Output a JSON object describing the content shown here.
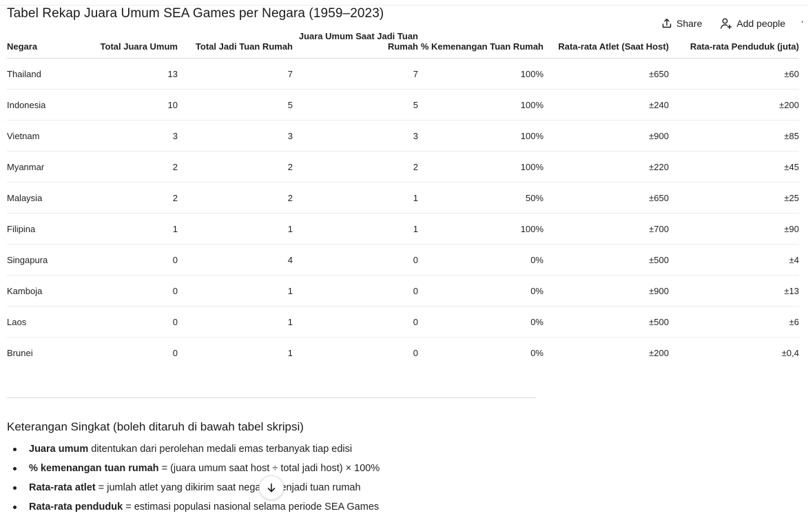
{
  "page": {
    "title": "Tabel Rekap Juara Umum SEA Games per Negara (1959–2023)"
  },
  "actions": {
    "share_label": "Share",
    "add_people_label": "Add people",
    "more_label": "·",
    "share_icon": "share-icon",
    "add_people_icon": "add-person-icon",
    "scroll_icon": "arrow-down-icon"
  },
  "table": {
    "headers": [
      "Negara",
      "Total Juara Umum",
      "Total Jadi Tuan Rumah",
      "Juara Umum Saat Jadi Tuan Rumah",
      "% Kemenangan Tuan Rumah",
      "Rata-rata Atlet (Saat Host)",
      "Rata-rata Penduduk (juta)"
    ],
    "rows": [
      [
        "Thailand",
        "13",
        "7",
        "7",
        "100%",
        "±650",
        "±60"
      ],
      [
        "Indonesia",
        "10",
        "5",
        "5",
        "100%",
        "±240",
        "±200"
      ],
      [
        "Vietnam",
        "3",
        "3",
        "3",
        "100%",
        "±900",
        "±85"
      ],
      [
        "Myanmar",
        "2",
        "2",
        "2",
        "100%",
        "±220",
        "±45"
      ],
      [
        "Malaysia",
        "2",
        "2",
        "1",
        "50%",
        "±650",
        "±25"
      ],
      [
        "Filipina",
        "1",
        "1",
        "1",
        "100%",
        "±700",
        "±90"
      ],
      [
        "Singapura",
        "0",
        "4",
        "0",
        "0%",
        "±500",
        "±4"
      ],
      [
        "Kamboja",
        "0",
        "1",
        "0",
        "0%",
        "±900",
        "±13"
      ],
      [
        "Laos",
        "0",
        "1",
        "0",
        "0%",
        "±500",
        "±6"
      ],
      [
        "Brunei",
        "0",
        "1",
        "0",
        "0%",
        "±200",
        "±0,4"
      ]
    ]
  },
  "notes": {
    "title": "Keterangan Singkat (boleh ditaruh di bawah tabel skripsi)",
    "items": [
      {
        "term": "Juara umum",
        "text": " ditentukan dari perolehan medali emas terbanyak tiap edisi"
      },
      {
        "term": "% kemenangan tuan rumah",
        "text": " = (juara umum saat host ÷ total jadi host) × 100%"
      },
      {
        "term": "Rata-rata atlet",
        "text": " = jumlah atlet yang dikirim saat negara menjadi tuan rumah"
      },
      {
        "term": "Rata-rata penduduk",
        "text": " = estimasi populasi nasional selama periode SEA Games"
      }
    ]
  }
}
